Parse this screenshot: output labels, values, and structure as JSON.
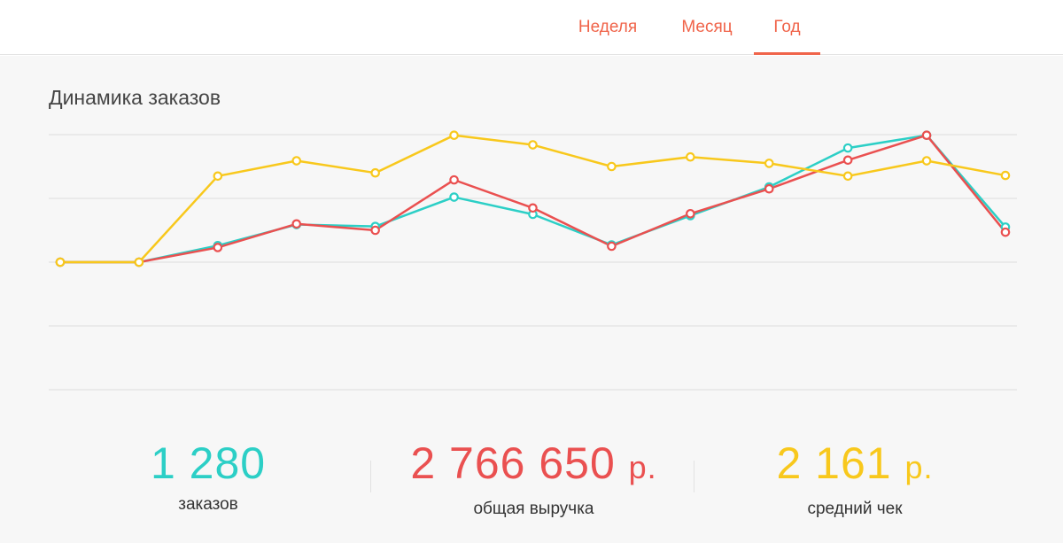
{
  "tabs": [
    {
      "label": "Неделя",
      "active": false
    },
    {
      "label": "Месяц",
      "active": false
    },
    {
      "label": "Год",
      "active": true
    }
  ],
  "colors": {
    "accent": "#f0644a",
    "teal": "#2ccfc6",
    "red": "#ea5050",
    "yellow": "#f8c81c",
    "grid": "#dddddd",
    "panel": "#f7f7f7"
  },
  "panel": {
    "title": "Динамика заказов"
  },
  "chart_data": {
    "type": "line",
    "x": [
      1,
      2,
      3,
      4,
      5,
      6,
      7,
      8,
      9,
      10,
      11,
      12,
      13
    ],
    "ylim": [
      0,
      4
    ],
    "grid": true,
    "gridlines": [
      0,
      1,
      2,
      3,
      4
    ],
    "series": [
      {
        "key": "orders",
        "color": "#2ccfc6",
        "values": [
          2.0,
          2.0,
          2.26,
          2.59,
          2.56,
          3.02,
          2.75,
          2.27,
          2.73,
          3.18,
          3.79,
          3.99,
          2.55
        ]
      },
      {
        "key": "revenue",
        "color": "#ea5050",
        "values": [
          2.0,
          2.0,
          2.23,
          2.6,
          2.5,
          3.29,
          2.85,
          2.25,
          2.76,
          3.15,
          3.6,
          3.99,
          2.47
        ]
      },
      {
        "key": "average",
        "color": "#f8c81c",
        "values": [
          2.0,
          2.0,
          3.35,
          3.59,
          3.4,
          3.99,
          3.84,
          3.5,
          3.65,
          3.55,
          3.35,
          3.59,
          3.36
        ]
      }
    ]
  },
  "stats": {
    "orders": {
      "value": "1 280",
      "unit": "",
      "label": "заказов",
      "color": "#2ccfc6"
    },
    "revenue": {
      "value": "2 766 650",
      "unit": "р.",
      "label": "общая выручка",
      "color": "#ea5050"
    },
    "average": {
      "value": "2 161",
      "unit": "р.",
      "label": "средний чек",
      "color": "#f8c81c"
    }
  }
}
